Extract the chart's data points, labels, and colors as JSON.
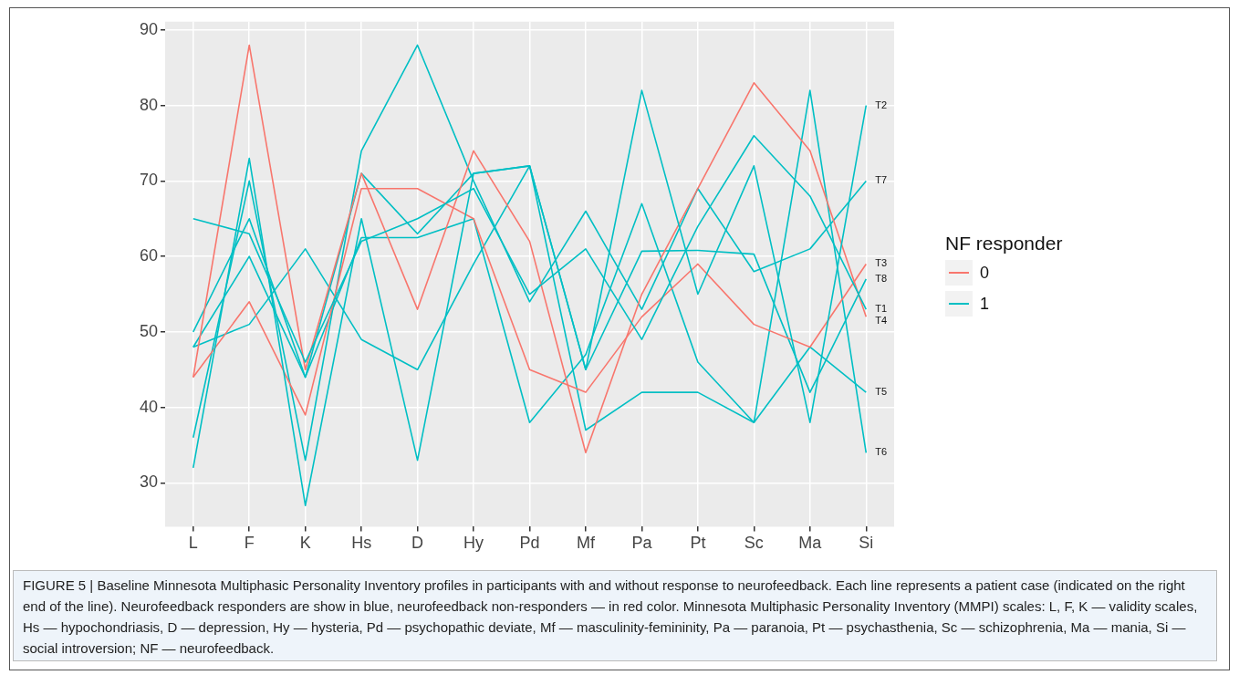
{
  "chart_data": {
    "type": "line",
    "categories": [
      "L",
      "F",
      "K",
      "Hs",
      "D",
      "Hy",
      "Pd",
      "Mf",
      "Pa",
      "Pt",
      "Sc",
      "Ma",
      "Si"
    ],
    "series": [
      {
        "name": "T1",
        "color": "#00bfc4",
        "values": [
          65,
          63,
          46,
          62,
          65,
          69,
          55,
          61,
          49,
          64,
          76,
          68,
          53
        ]
      },
      {
        "name": "T2",
        "color": "#00bfc4",
        "values": [
          32,
          73,
          27,
          65,
          33,
          71,
          72,
          45,
          82,
          55,
          72,
          38,
          80
        ]
      },
      {
        "name": "T3",
        "color": "#f8766d",
        "values": [
          44,
          54,
          39,
          69,
          69,
          65,
          45,
          42,
          52,
          59,
          51,
          48,
          59
        ]
      },
      {
        "name": "T4",
        "color": "#f8766d",
        "values": [
          44,
          88,
          45,
          71,
          53,
          74,
          62,
          34,
          55,
          69,
          83,
          74,
          52
        ]
      },
      {
        "name": "T5",
        "color": "#00bfc4",
        "values": [
          48,
          51,
          61,
          49,
          45,
          59,
          72,
          37,
          42,
          42,
          38,
          48,
          42
        ]
      },
      {
        "name": "T6",
        "color": "#00bfc4",
        "values": [
          50,
          65,
          44,
          62.5,
          62.5,
          65,
          38,
          47,
          67,
          46,
          38,
          82,
          34
        ]
      },
      {
        "name": "T7",
        "color": "#00bfc4",
        "values": [
          36,
          70,
          33,
          74,
          88,
          70,
          54,
          66,
          53,
          69,
          58,
          61,
          70
        ]
      },
      {
        "name": "T8",
        "color": "#00bfc4",
        "values": [
          48,
          60,
          44,
          71,
          63,
          71,
          72,
          45,
          60.7,
          60.8,
          60.3,
          42,
          57
        ]
      }
    ],
    "ylim": [
      24.2,
      91.1
    ],
    "yticks": [
      30,
      40,
      50,
      60,
      70,
      80,
      90
    ],
    "grid": true,
    "legend": "right",
    "legend_title": "NF responder",
    "marker": "none",
    "line_style": "solid",
    "annotations": [
      "0",
      "1",
      "FIGURE 5 | Baseline Minnesota Multiphasic Personality Inventory profiles in participants with and without response to neurofeedback. Each line represents a patient case (indicated on the right end of the line). Neurofeedback responders are show in blue, neurofeedback non-responders — in red color. Minnesota Multiphasic Personality Inventory (MMPI) scales: L, F, K — validity scales, Hs — hypochondriasis, D — depression, Hy — hysteria, Pd — psychopathic deviate, Mf — masculinity-femininity, Pa — paranoia, Pt — psychasthenia, Sc — schizophrenia, Ma — mania, Si — social introversion; NF — neurofeedback."
    ]
  }
}
